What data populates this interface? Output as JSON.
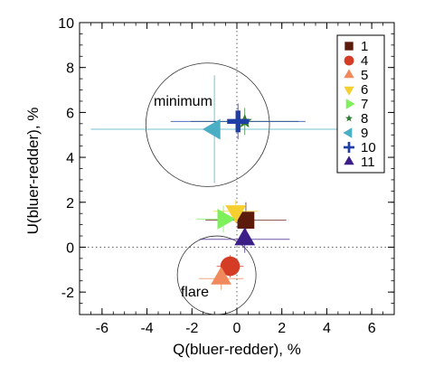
{
  "chart_data": {
    "type": "scatter",
    "xlabel": "Q(bluer-redder), %",
    "ylabel": "U(bluer-redder), %",
    "xlim": [
      -7,
      7
    ],
    "ylim": [
      -3,
      10
    ],
    "xticks": [
      -6,
      -4,
      -2,
      0,
      2,
      4,
      6
    ],
    "yticks": [
      -2,
      0,
      2,
      4,
      6,
      8,
      10
    ],
    "zero_lines": {
      "style": "dotted",
      "x": 0,
      "y": 0
    },
    "legend_position": "top-right",
    "annotations": [
      {
        "text": "minimum",
        "x": -3.7,
        "y": 6.3
      },
      {
        "text": "flare",
        "x": -2.5,
        "y": -2.2
      }
    ],
    "circles": [
      {
        "label": "minimum",
        "cx": -1.3,
        "cy": 5.45,
        "r": 2.75
      },
      {
        "label": "flare",
        "cx": -0.9,
        "cy": -1.25,
        "r": 1.75
      }
    ],
    "series": [
      {
        "name": "1",
        "marker": "square",
        "color": "#5c1a0b",
        "x": 0.4,
        "y": 1.2,
        "xerr": 1.8,
        "yerr": 0.8
      },
      {
        "name": "4",
        "marker": "circle",
        "color": "#d43c26",
        "x": -0.3,
        "y": -0.85,
        "xerr": 0.6,
        "yerr": 0.5
      },
      {
        "name": "5",
        "marker": "triangle-up",
        "color": "#f08a5d",
        "x": -0.7,
        "y": -1.4,
        "xerr": 1.0,
        "yerr": 0.5
      },
      {
        "name": "6",
        "marker": "triangle-down",
        "color": "#f5cf2f",
        "x": -0.05,
        "y": 1.6,
        "xerr": 1.0,
        "yerr": 0.5
      },
      {
        "name": "7",
        "marker": "triangle-right",
        "color": "#7df05a",
        "x": -0.6,
        "y": 1.25,
        "xerr": 1.2,
        "yerr": 0.6
      },
      {
        "name": "8",
        "marker": "star",
        "color": "#2e7d32",
        "x": 0.35,
        "y": 5.6,
        "xerr": 2.4,
        "yerr": 0.6
      },
      {
        "name": "9",
        "marker": "triangle-left",
        "color": "#4aaec4",
        "x": -1.0,
        "y": 5.25,
        "xerr": 5.5,
        "yerr": 2.4
      },
      {
        "name": "10",
        "marker": "plus",
        "color": "#1f3fa6",
        "x": 0.05,
        "y": 5.6,
        "xerr": 3.0,
        "yerr": 0.8
      },
      {
        "name": "11",
        "marker": "triangle-up",
        "color": "#3b1f87",
        "x": 0.35,
        "y": 0.35,
        "xerr": 2.0,
        "yerr": 0.6
      }
    ]
  }
}
